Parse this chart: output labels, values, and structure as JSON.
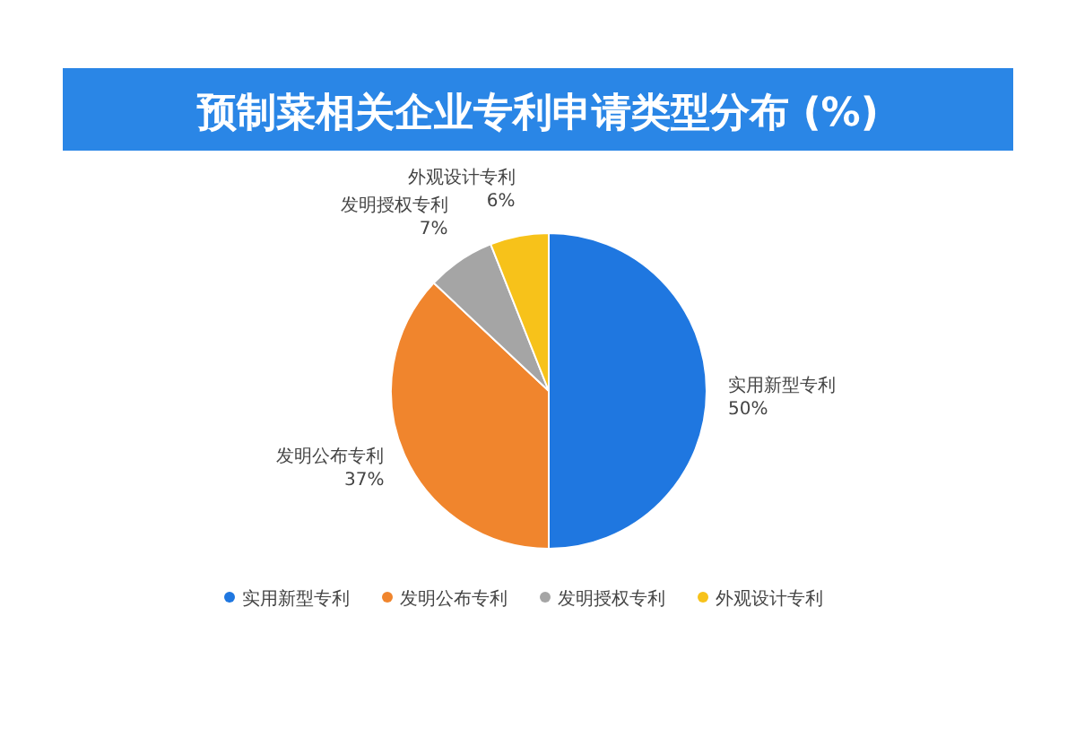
{
  "chart_data": {
    "type": "pie",
    "title": "预制菜相关企业专利申请类型分布 (%)",
    "categories": [
      "实用新型专利",
      "发明公布专利",
      "发明授权专利",
      "外观设计专利"
    ],
    "values": [
      50,
      37,
      7,
      6
    ],
    "value_labels": [
      "50%",
      "37%",
      "7%",
      "6%"
    ],
    "colors": [
      "#1f77e0",
      "#f0852d",
      "#a5a5a5",
      "#f7c21a"
    ],
    "legend": "bottom"
  }
}
